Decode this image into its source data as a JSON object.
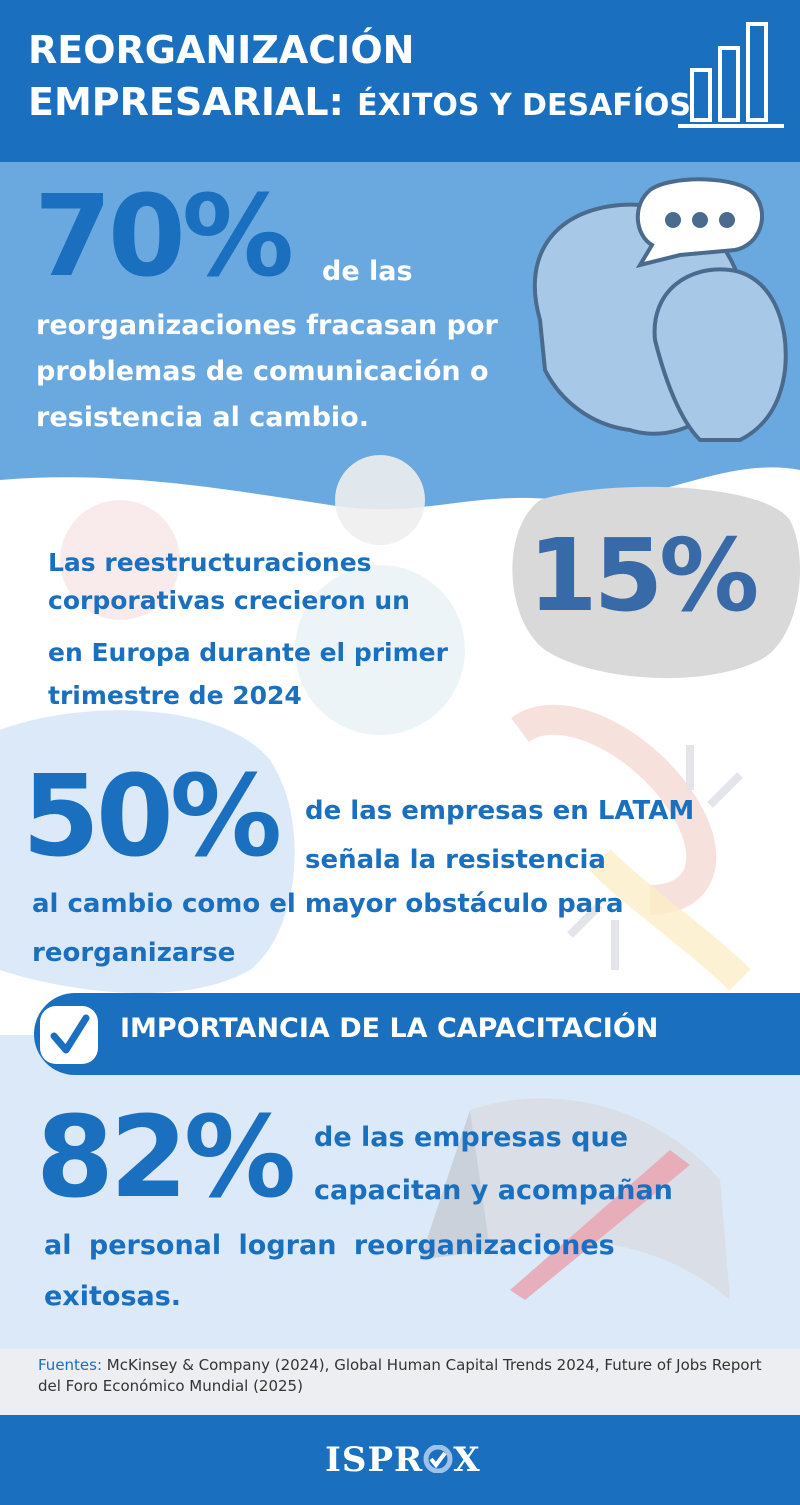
{
  "header": {
    "title_line1": "REORGANIZACIÓN",
    "title_line2_main": "EMPRESARIAL:",
    "title_line2_small": "ÉXITOS Y DESAFÍOS",
    "icon": "bar-chart-icon"
  },
  "stats": [
    {
      "value": "70%",
      "text_first": "de las",
      "text_rest": "reorganizaciones fracasan por problemas de comunicación o resistencia al cambio."
    },
    {
      "value": "15%",
      "text_first": "Las reestructuraciones corporativas crecieron un",
      "text_rest": "en Europa durante el primer trimestre de 2024"
    },
    {
      "value": "50%",
      "text_first": "de las empresas en LATAM señala la resistencia",
      "text_rest": "al cambio como el mayor obstáculo para reorganizarse"
    },
    {
      "value": "82%",
      "text_first": "de las empresas que capacitan y acompañan",
      "text_rest": "al personal logran reorganizaciones exitosas."
    }
  ],
  "banner": {
    "title": "IMPORTANCIA DE LA CAPACITACIÓN",
    "icon": "checkmark-icon"
  },
  "sources": {
    "label": "Fuentes:",
    "text": " McKinsey & Company (2024), Global Human Capital Trends 2024, Future of Jobs Report del Foro Económico Mundial (2025)"
  },
  "footer": {
    "logo_left": "ISPR",
    "logo_right": "X"
  },
  "colors": {
    "primary": "#1a6fbf",
    "light_blue": "#6aa9e0",
    "pale_blue": "#dbe9f8",
    "number_15": "#386aa8",
    "gray_blob": "#d9d9d9"
  }
}
